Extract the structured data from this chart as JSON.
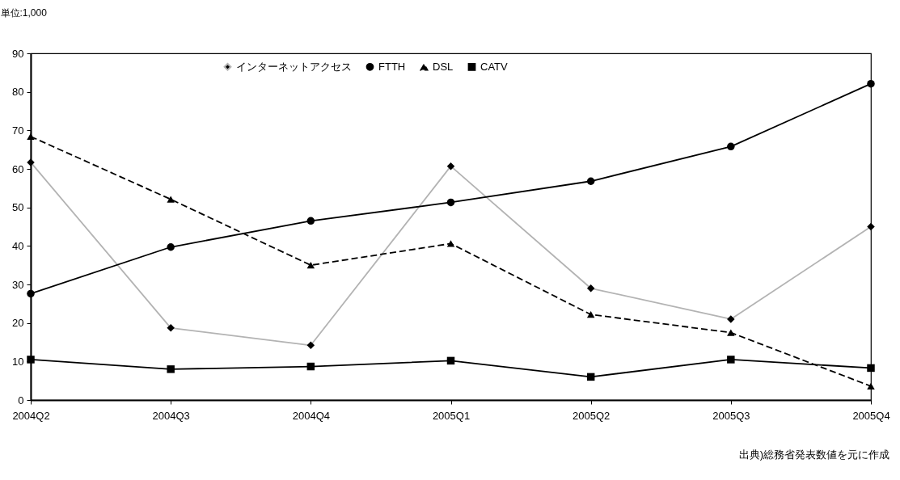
{
  "chart_data": {
    "type": "line",
    "ylabel": "単位:1,000",
    "categories": [
      "2004Q2",
      "2004Q3",
      "2004Q4",
      "2005Q1",
      "2005Q2",
      "2005Q3",
      "2005Q4"
    ],
    "series": [
      {
        "name": "インターネットアクセス",
        "color": "#b3b3b3",
        "marker": "diamond",
        "line_style": "solid",
        "values": [
          61.7,
          18.7,
          14.2,
          60.7,
          29,
          21,
          45
        ]
      },
      {
        "name": "FTTH",
        "color": "#000000",
        "marker": "circle",
        "line_style": "solid",
        "values": [
          27.6,
          39.7,
          46.5,
          51.3,
          56.8,
          65.8,
          82.1
        ]
      },
      {
        "name": "DSL",
        "color": "#000000",
        "marker": "triangle",
        "line_style": "dashed",
        "values": [
          68.4,
          52.1,
          35,
          40.6,
          22.2,
          17.5,
          3.6
        ]
      },
      {
        "name": "CATV",
        "color": "#000000",
        "marker": "square",
        "line_style": "solid",
        "values": [
          10.5,
          8,
          8.7,
          10.2,
          6,
          10.5,
          8.3
        ]
      }
    ],
    "ylim": [
      0,
      90
    ],
    "yticks": [
      0,
      10,
      20,
      30,
      40,
      50,
      60,
      70,
      80,
      90
    ],
    "grid": false,
    "legend": "top",
    "annotations": [
      "出典)総務省発表数値を元に作成"
    ]
  }
}
